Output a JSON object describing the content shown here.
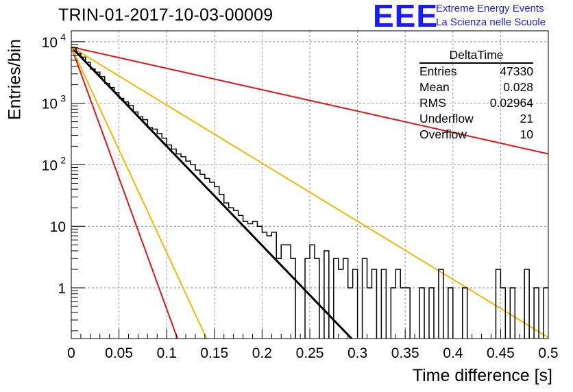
{
  "title": "TRIN-01-2017-10-03-00009",
  "logo": {
    "mark": "EEE",
    "line1": "Extreme Energy Events",
    "line2": "La Scienza nelle Scuole",
    "color": "#1a1aff"
  },
  "stats": {
    "header": "DeltaTime",
    "rows": [
      {
        "label": "Entries",
        "value": "47330"
      },
      {
        "label": "Mean",
        "value": "0.028"
      },
      {
        "label": "RMS",
        "value": "0.02964"
      },
      {
        "label": "Underflow",
        "value": "21"
      },
      {
        "label": "Overflow",
        "value": "10"
      }
    ]
  },
  "chart_data": {
    "type": "line",
    "title": "TRIN-01-2017-10-03-00009",
    "xlabel": "Time difference [s]",
    "ylabel": "Entries/bin",
    "xlim": [
      0,
      0.5
    ],
    "ylim": [
      0.15,
      15000
    ],
    "y_scale": "log",
    "grid": true,
    "x_ticks": [
      {
        "v": 0,
        "label": "0"
      },
      {
        "v": 0.05,
        "label": "0.05"
      },
      {
        "v": 0.1,
        "label": "0.1"
      },
      {
        "v": 0.15,
        "label": "0.15"
      },
      {
        "v": 0.2,
        "label": "0.2"
      },
      {
        "v": 0.25,
        "label": "0.25"
      },
      {
        "v": 0.3,
        "label": "0.3"
      },
      {
        "v": 0.35,
        "label": "0.35"
      },
      {
        "v": 0.4,
        "label": "0.4"
      },
      {
        "v": 0.45,
        "label": "0.45"
      },
      {
        "v": 0.5,
        "label": "0.5"
      }
    ],
    "y_ticks": [
      {
        "v": 1,
        "label": "1"
      },
      {
        "v": 10,
        "label": "10"
      },
      {
        "v": 100,
        "label": "10",
        "exp": "2"
      },
      {
        "v": 1000,
        "label": "10",
        "exp": "3"
      },
      {
        "v": 10000,
        "label": "10",
        "exp": "4"
      }
    ],
    "histogram": {
      "bin_width": 0.005,
      "color": "#000000",
      "values": [
        8000,
        6500,
        5600,
        4600,
        3600,
        3200,
        2700,
        2100,
        1800,
        1500,
        1200,
        1050,
        920,
        720,
        600,
        540,
        400,
        380,
        320,
        270,
        210,
        180,
        150,
        135,
        115,
        100,
        82,
        70,
        60,
        52,
        44,
        33,
        24,
        20,
        18,
        15,
        12,
        11,
        12,
        10,
        8,
        7,
        8,
        3,
        5,
        5,
        3,
        0,
        0,
        3,
        5,
        3,
        0,
        4,
        0,
        3,
        2,
        3,
        1,
        2,
        0,
        3,
        1,
        2,
        0,
        2,
        0,
        1,
        2,
        1,
        1,
        0,
        0,
        1,
        0,
        1,
        0,
        2,
        0,
        1,
        0,
        0,
        1,
        0,
        0,
        0,
        0,
        0,
        0,
        2,
        1,
        0,
        1,
        0,
        0,
        2,
        0,
        1,
        0,
        1
      ]
    },
    "series": [
      {
        "A": 8200,
        "tau": 0.02693,
        "color": "#000000",
        "width": 3
      },
      {
        "A": 8200,
        "tau": 0.125,
        "color": "#e51414",
        "width": 2
      },
      {
        "A": 8200,
        "tau": 0.0102,
        "color": "#e51414",
        "width": 2
      },
      {
        "A": 8200,
        "tau": 0.046,
        "color": "#f5b800",
        "width": 2
      },
      {
        "A": 8200,
        "tau": 0.013,
        "color": "#f5b800",
        "width": 2
      }
    ]
  }
}
